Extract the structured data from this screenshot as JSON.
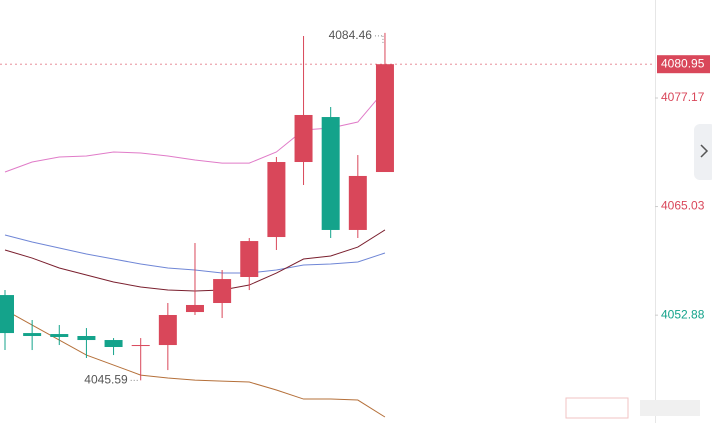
{
  "chart_data": {
    "type": "candlestick",
    "categories": [
      null,
      null,
      null,
      null,
      null,
      null,
      null,
      null,
      null,
      null,
      null,
      null,
      null,
      null,
      null
    ],
    "open": [
      4055.13,
      4050.88,
      4050.77,
      4050.55,
      4050.1,
      4049.43,
      4049.54,
      4053.23,
      4054.24,
      4057.15,
      4061.62,
      4070.01,
      4075.04,
      4062.41,
      4068.89
    ],
    "high": [
      4055.69,
      4052.34,
      4051.78,
      4051.44,
      4050.32,
      4050.32,
      4054.24,
      4060.95,
      4057.93,
      4061.51,
      4070.57,
      4084.1,
      4076.16,
      4070.79,
      4084.46
    ],
    "low": [
      4048.98,
      4048.98,
      4049.54,
      4048.09,
      4048.42,
      4045.59,
      4046.74,
      4052.9,
      4052.56,
      4055.69,
      4060.17,
      4067.44,
      4061.51,
      4061.51,
      4068.89
    ],
    "close": [
      4050.88,
      4050.55,
      4050.44,
      4050.1,
      4049.32,
      4049.54,
      4052.9,
      4054.02,
      4056.92,
      4061.17,
      4070.01,
      4075.27,
      4062.41,
      4068.45,
      4080.95
    ],
    "up_color": "#d9475a",
    "down_color": "#14a38b",
    "series": [
      {
        "color": "#e07bc8",
        "values": [
          4068.89,
          4070.01,
          4070.57,
          4070.68,
          4071.13,
          4071.02,
          4070.68,
          4070.23,
          4069.89,
          4069.89,
          4071.13,
          4073.59,
          4073.81,
          4074.48,
          4078.06
        ]
      },
      {
        "color": "#6f86d6",
        "values": [
          4061.85,
          4061.06,
          4060.39,
          4059.72,
          4059.16,
          4058.6,
          4058.16,
          4057.93,
          4057.59,
          4057.59,
          4057.93,
          4058.49,
          4058.6,
          4058.83,
          4059.83
        ]
      },
      {
        "color": "#7a1f2e",
        "values": [
          4060.17,
          4059.27,
          4058.16,
          4057.37,
          4056.59,
          4056.03,
          4055.69,
          4055.58,
          4055.69,
          4056.25,
          4057.59,
          4059.16,
          4059.5,
          4060.5,
          4062.41
        ]
      },
      {
        "color": "#b5703a",
        "values": [
          4053.46,
          4051.78,
          4050.1,
          4048.42,
          4047.3,
          4046.18,
          4045.85,
          4045.62,
          4045.51,
          4045.4,
          4044.51,
          4043.5,
          4043.5,
          4043.39,
          4041.49
        ]
      }
    ],
    "ylim": [
      4040.82,
      4088.13
    ],
    "yticks": [
      4077.17,
      4065.03,
      4052.88
    ],
    "ytick_colors": [
      "#d9475a",
      "#d9475a",
      "#14a38b"
    ],
    "current_price_color": "#d9475a"
  }
}
